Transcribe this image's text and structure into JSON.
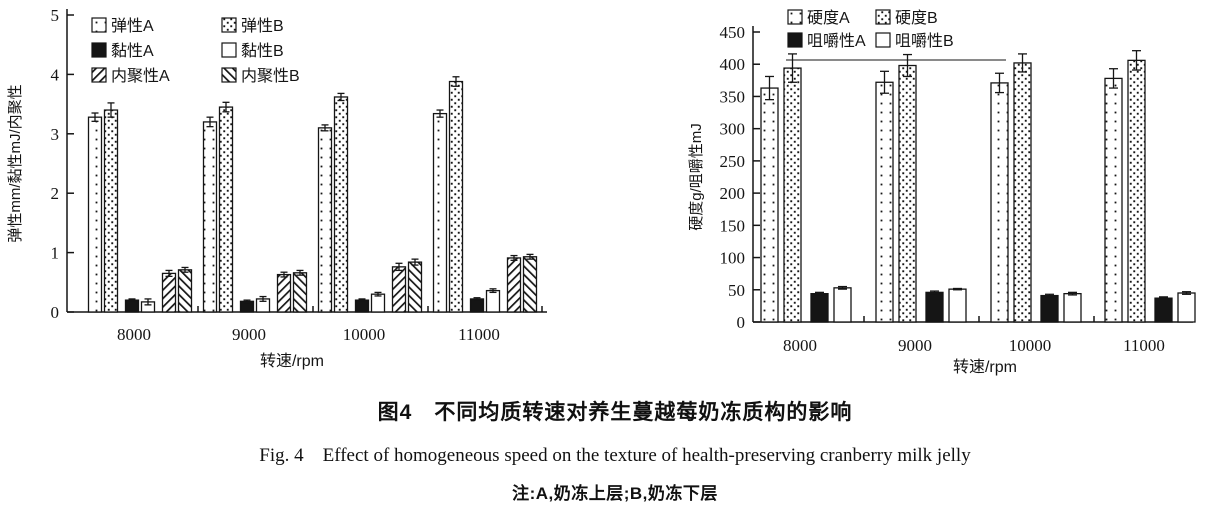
{
  "figure": {
    "caption_zh": "图4　不同均质转速对养生蔓越莓奶冻质构的影响",
    "caption_en": "Fig. 4　Effect of homogeneous speed on the texture of health-preserving cranberry milk jelly",
    "note": "注:A,奶冻上层;B,奶冻下层"
  },
  "chart_data": [
    {
      "type": "bar",
      "title": "",
      "xlabel": "转速/rpm",
      "ylabel": "弹性mm/黏性mJ/内聚性",
      "ylim": [
        0,
        5
      ],
      "yticks": [
        0,
        1,
        2,
        3,
        4,
        5
      ],
      "grid": false,
      "legend_position": "top-left-inside",
      "legend_columns": 2,
      "categories": [
        "8000",
        "9000",
        "10000",
        "11000"
      ],
      "series": [
        {
          "name": "弹性A",
          "pattern": "dots-sparse",
          "values": [
            3.28,
            3.2,
            3.1,
            3.34
          ],
          "errors": [
            0.07,
            0.08,
            0.05,
            0.06
          ]
        },
        {
          "name": "弹性B",
          "pattern": "dots-dense",
          "values": [
            3.4,
            3.45,
            3.62,
            3.88
          ],
          "errors": [
            0.12,
            0.08,
            0.06,
            0.08
          ]
        },
        {
          "name": "黏性A",
          "pattern": "solid-black",
          "values": [
            0.2,
            0.18,
            0.2,
            0.22
          ],
          "errors": [
            0.02,
            0.02,
            0.02,
            0.02
          ]
        },
        {
          "name": "黏性B",
          "pattern": "white",
          "values": [
            0.17,
            0.22,
            0.3,
            0.36
          ],
          "errors": [
            0.05,
            0.04,
            0.03,
            0.03
          ]
        },
        {
          "name": "内聚性A",
          "pattern": "hatch-back",
          "values": [
            0.65,
            0.63,
            0.76,
            0.91
          ],
          "errors": [
            0.05,
            0.04,
            0.06,
            0.04
          ]
        },
        {
          "name": "内聚性B",
          "pattern": "hatch-fwd",
          "values": [
            0.71,
            0.66,
            0.84,
            0.93
          ],
          "errors": [
            0.04,
            0.04,
            0.05,
            0.04
          ]
        }
      ]
    },
    {
      "type": "bar",
      "title": "",
      "xlabel": "转速/rpm",
      "ylabel": "硬度g/咀嚼性mJ",
      "ylim": [
        0,
        450
      ],
      "yticks": [
        0,
        50,
        100,
        150,
        200,
        250,
        300,
        350,
        400,
        450
      ],
      "grid": false,
      "legend_position": "top-center-inside",
      "legend_columns": 2,
      "categories": [
        "8000",
        "9000",
        "10000",
        "11000"
      ],
      "series": [
        {
          "name": "硬度A",
          "pattern": "dots-sparse",
          "values": [
            363,
            372,
            371,
            378
          ],
          "errors": [
            18,
            17,
            15,
            15
          ]
        },
        {
          "name": "硬度B",
          "pattern": "dots-dense",
          "values": [
            394,
            398,
            402,
            406
          ],
          "errors": [
            22,
            17,
            14,
            15
          ]
        },
        {
          "name": "咀嚼性A",
          "pattern": "solid-black",
          "values": [
            44,
            46,
            41,
            37
          ],
          "errors": [
            2,
            2,
            2,
            2
          ]
        },
        {
          "name": "咀嚼性B",
          "pattern": "white",
          "values": [
            53,
            51,
            44,
            45
          ],
          "errors": [
            2,
            1,
            2,
            2
          ]
        }
      ]
    }
  ],
  "colors": {
    "ink": "#151515",
    "background": "#ffffff"
  }
}
